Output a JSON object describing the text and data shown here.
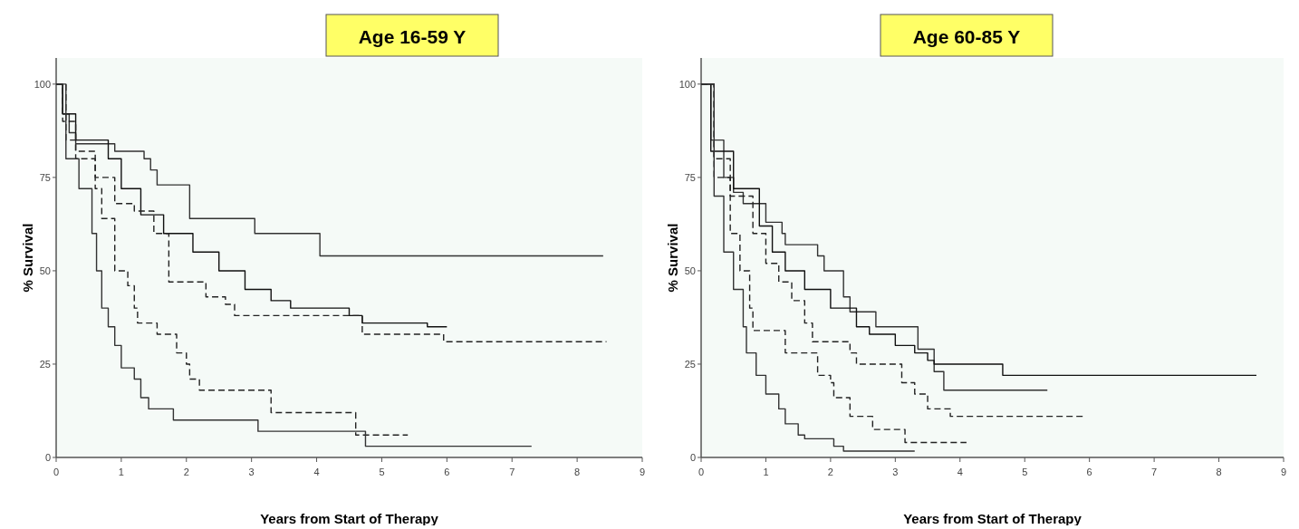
{
  "chart_data": [
    {
      "type": "step",
      "title": "Age 16-59 Y",
      "xlabel": "Years from Start of Therapy",
      "ylabel": "% Survival",
      "xlim": [
        0,
        9
      ],
      "ylim": [
        0,
        107
      ],
      "xticks": [
        0,
        1,
        2,
        3,
        4,
        5,
        6,
        7,
        8,
        9
      ],
      "yticks": [
        0,
        25,
        50,
        75,
        100
      ],
      "grid": false,
      "series": [
        {
          "color": "#333333",
          "line_style": "solid",
          "x": [
            0,
            0.1,
            0.2,
            0.3,
            0.9,
            1.35,
            1.45,
            1.55,
            2.05,
            3.05,
            4.05,
            8.4
          ],
          "values": [
            100,
            92,
            87,
            84,
            82,
            80,
            77,
            73,
            64,
            60,
            54,
            54
          ]
        },
        {
          "color": "#111111",
          "line_style": "solid",
          "x": [
            0,
            0.1,
            0.3,
            0.8,
            1.0,
            1.3,
            1.65,
            2.1,
            2.5,
            2.9,
            3.3,
            3.6,
            4.5,
            4.7,
            5.7,
            6.0
          ],
          "values": [
            100,
            92,
            85,
            80,
            72,
            65,
            60,
            55,
            50,
            45,
            42,
            40,
            38,
            36,
            35,
            35
          ]
        },
        {
          "color": "#222222",
          "line_style": "dashed",
          "x": [
            0,
            0.1,
            0.3,
            0.6,
            0.9,
            1.2,
            1.5,
            1.73,
            2.3,
            2.6,
            2.74,
            4.7,
            5.95,
            8.45
          ],
          "values": [
            100,
            90,
            82,
            75,
            68,
            66,
            60,
            47,
            43,
            41,
            38,
            33,
            31,
            31
          ]
        },
        {
          "color": "#222222",
          "line_style": "dashed",
          "x": [
            0,
            0.15,
            0.3,
            0.6,
            0.7,
            0.9,
            1.1,
            1.2,
            1.25,
            1.55,
            1.85,
            2.0,
            2.05,
            2.2,
            3.3,
            4.6,
            5.4
          ],
          "values": [
            100,
            85,
            80,
            72,
            64,
            50,
            46,
            40,
            36,
            33,
            28,
            25,
            21,
            18,
            12,
            6,
            6
          ]
        },
        {
          "color": "#333333",
          "line_style": "solid",
          "x": [
            0,
            0.15,
            0.35,
            0.55,
            0.62,
            0.7,
            0.8,
            0.9,
            1.0,
            1.2,
            1.3,
            1.42,
            1.8,
            3.1,
            4.75,
            7.3
          ],
          "values": [
            100,
            80,
            72,
            60,
            50,
            40,
            35,
            30,
            24,
            21,
            16,
            13,
            10,
            7,
            3,
            3
          ]
        }
      ]
    },
    {
      "type": "step",
      "title": "Age 60-85 Y",
      "xlabel": "Years from Start of Therapy",
      "ylabel": "% Survival",
      "xlim": [
        0,
        9
      ],
      "ylim": [
        0,
        107
      ],
      "xticks": [
        0,
        1,
        2,
        3,
        4,
        5,
        6,
        7,
        8,
        9
      ],
      "yticks": [
        0,
        25,
        50,
        75,
        100
      ],
      "grid": false,
      "series": [
        {
          "color": "#333333",
          "line_style": "solid",
          "x": [
            0,
            0.15,
            0.35,
            0.5,
            0.65,
            1.0,
            1.25,
            1.3,
            1.8,
            1.9,
            2.2,
            2.3,
            2.7,
            3.35,
            3.6,
            3.75,
            5.35
          ],
          "values": [
            100,
            85,
            75,
            71,
            68,
            63,
            60,
            57,
            54,
            50,
            43,
            39,
            35,
            29,
            23,
            18,
            18
          ]
        },
        {
          "color": "#111111",
          "line_style": "solid",
          "x": [
            0,
            0.15,
            0.5,
            0.9,
            1.1,
            1.3,
            1.6,
            2.0,
            2.4,
            2.6,
            3.0,
            3.3,
            3.5,
            3.6,
            4.66,
            8.58
          ],
          "values": [
            100,
            82,
            72,
            62,
            55,
            50,
            45,
            40,
            35,
            33,
            30,
            28,
            26,
            25,
            22,
            22
          ]
        },
        {
          "color": "#222222",
          "line_style": "dashed",
          "x": [
            0,
            0.2,
            0.45,
            0.8,
            1.0,
            1.2,
            1.4,
            1.6,
            1.72,
            2.3,
            2.4,
            3.1,
            3.3,
            3.5,
            3.85,
            5.9
          ],
          "values": [
            100,
            80,
            70,
            60,
            52,
            47,
            42,
            36,
            31,
            28,
            25,
            20,
            17,
            13,
            11,
            11
          ]
        },
        {
          "color": "#222222",
          "line_style": "dashed",
          "x": [
            0,
            0.2,
            0.45,
            0.6,
            0.75,
            0.8,
            1.3,
            1.8,
            2.0,
            2.05,
            2.3,
            2.65,
            3.15,
            4.1
          ],
          "values": [
            100,
            75,
            60,
            50,
            40,
            34,
            28,
            22,
            20,
            16,
            11,
            7.5,
            4,
            4
          ]
        },
        {
          "color": "#333333",
          "line_style": "solid",
          "x": [
            0,
            0.2,
            0.35,
            0.5,
            0.65,
            0.7,
            0.85,
            1.0,
            1.2,
            1.3,
            1.5,
            1.6,
            2.05,
            2.2,
            3.3
          ],
          "values": [
            100,
            70,
            55,
            45,
            35,
            28,
            22,
            17,
            13,
            9,
            6,
            5,
            3,
            1.7,
            1.7
          ]
        }
      ]
    }
  ]
}
